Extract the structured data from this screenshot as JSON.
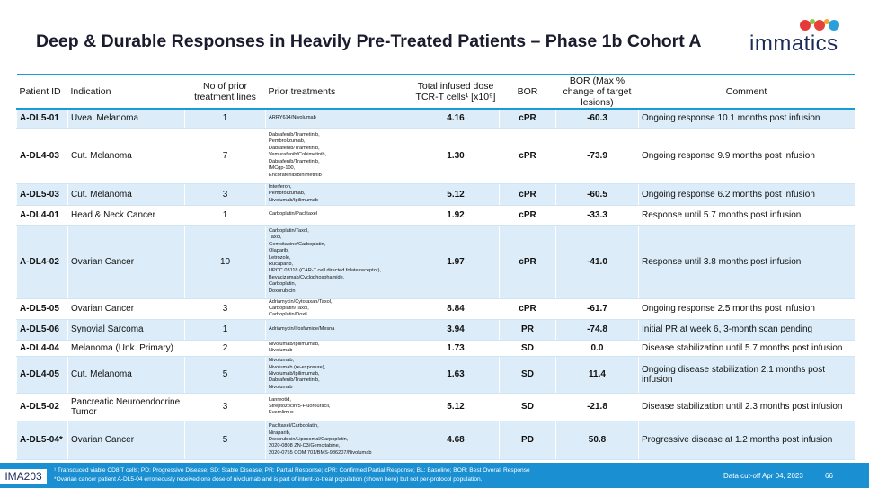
{
  "header": {
    "title": "Deep & Durable Responses in Heavily Pre-Treated Patients – Phase 1b Cohort A",
    "logo": "immatics"
  },
  "table": {
    "columns": [
      "Patient ID",
      "Indication",
      "No of prior treatment lines",
      "Prior treatments",
      "Total infused dose TCR-T cells¹ [x10⁹]",
      "BOR",
      "BOR (Max % change of target lesions)",
      "Comment"
    ],
    "rows": [
      [
        "A-DL5-01",
        "Uveal Melanoma",
        "1",
        [
          "ARRY614/Nivolumab"
        ],
        "4.16",
        "cPR",
        "-60.3",
        "Ongoing response 10.1 months post infusion"
      ],
      [
        "A-DL4-03",
        "Cut. Melanoma",
        "7",
        [
          "Dabrafenib/Trametinib,",
          "Pembrolizumab,",
          "Dabrafenib/Trametinib,",
          "Vemurafenib/Cobimetinib,",
          "Dabrafenib/Trametinib,",
          "IMCgp-100,",
          "Encorafenib/Binimetinib"
        ],
        "1.30",
        "cPR",
        "-73.9",
        "Ongoing response 9.9 months post infusion"
      ],
      [
        "A-DL5-03",
        "Cut. Melanoma",
        "3",
        [
          "Interferon,",
          "Pembrolizumab,",
          "Nivolumab/Ipilimumab"
        ],
        "5.12",
        "cPR",
        "-60.5",
        "Ongoing response 6.2 months post infusion"
      ],
      [
        "A-DL4-01",
        "Head & Neck Cancer",
        "1",
        [
          "Carboplatin/Paclitaxel"
        ],
        "1.92",
        "cPR",
        "-33.3",
        "Response until 5.7 months post infusion"
      ],
      [
        "A-DL4-02",
        "Ovarian Cancer",
        "10",
        [
          "Carboplatin/Taxol,",
          "Taxol,",
          "Gemcitabine/Carboplatin,",
          "Olaparib,",
          "Letrozole,",
          "Rucaparib,",
          "UPCC 03118 (CAR-T cell directed folate receptor),",
          "Bevacizumab/Cyclophosphamide,",
          "Carboplatin,",
          "Doxorubicin"
        ],
        "1.97",
        "cPR",
        "-41.0",
        "Response until 3.8 months post infusion"
      ],
      [
        "A-DL5-05",
        "Ovarian Cancer",
        "3",
        [
          "Adriamycin/Cytotaxan/Taxol,",
          "Carboplatin/Taxol,",
          "Carboplatin/Doxil"
        ],
        "8.84",
        "cPR",
        "-61.7",
        "Ongoing response 2.5 months post infusion"
      ],
      [
        "A-DL5-06",
        "Synovial Sarcoma",
        "1",
        [
          "Adriamycin/Ifosfamide/Mesna"
        ],
        "3.94",
        "PR",
        "-74.8",
        "Initial PR at week 6, 3-month scan pending"
      ],
      [
        "A-DL4-04",
        "Melanoma (Unk. Primary)",
        "2",
        [
          "Nivolumab/Ipilimumab,",
          "Nivolumab"
        ],
        "1.73",
        "SD",
        "0.0",
        "Disease stabilization until 5.7 months post infusion"
      ],
      [
        "A-DL4-05",
        "Cut. Melanoma",
        "5",
        [
          "Nivolumab,",
          "Nivolumab (re-exposure),",
          "Nivolumab/Ipilimumab,",
          "Dabrafenib/Trametinib,",
          "Nivolumab"
        ],
        "1.63",
        "SD",
        "11.4",
        "Ongoing disease stabilization 2.1 months post infusion"
      ],
      [
        "A-DL5-02",
        "Pancreatic Neuroendocrine Tumor",
        "3",
        [
          "Lanreotid,",
          "Streptozocin/5-Fluorouracil,",
          "Everolimus"
        ],
        "5.12",
        "SD",
        "-21.8",
        "Disease stabilization until 2.3 months post infusion"
      ],
      [
        "A-DL5-04*",
        "Ovarian Cancer",
        "5",
        [
          "Paclitaxel/Carboplatin,",
          "Niraparib,",
          "Doxorubicin/Liposomal/Carpoplatin,",
          "2020-0808 ZN-C3/Gemcitabine,",
          "2020-0755 COM 701/BMS-986207/Nivolumab"
        ],
        "4.68",
        "PD",
        "50.8",
        "Progressive disease at 1.2 months post infusion"
      ]
    ]
  },
  "footer": {
    "label": "IMA203",
    "notes": [
      "¹ Transduced viable CD8 T cells; PD: Progressive Disease; SD: Stable Disease; PR: Partial Response; cPR: Confirmed Partial Response; BL: Baseline; BOR: Best Overall Response",
      "*Ovarian cancer patient A-DL5-04 erroneously received one dose of nivolumab and is part of intent-to-treat population (shown here) but not per-protocol population."
    ],
    "cutoff": "Data cut-off Apr 04, 2023",
    "page": "66"
  }
}
